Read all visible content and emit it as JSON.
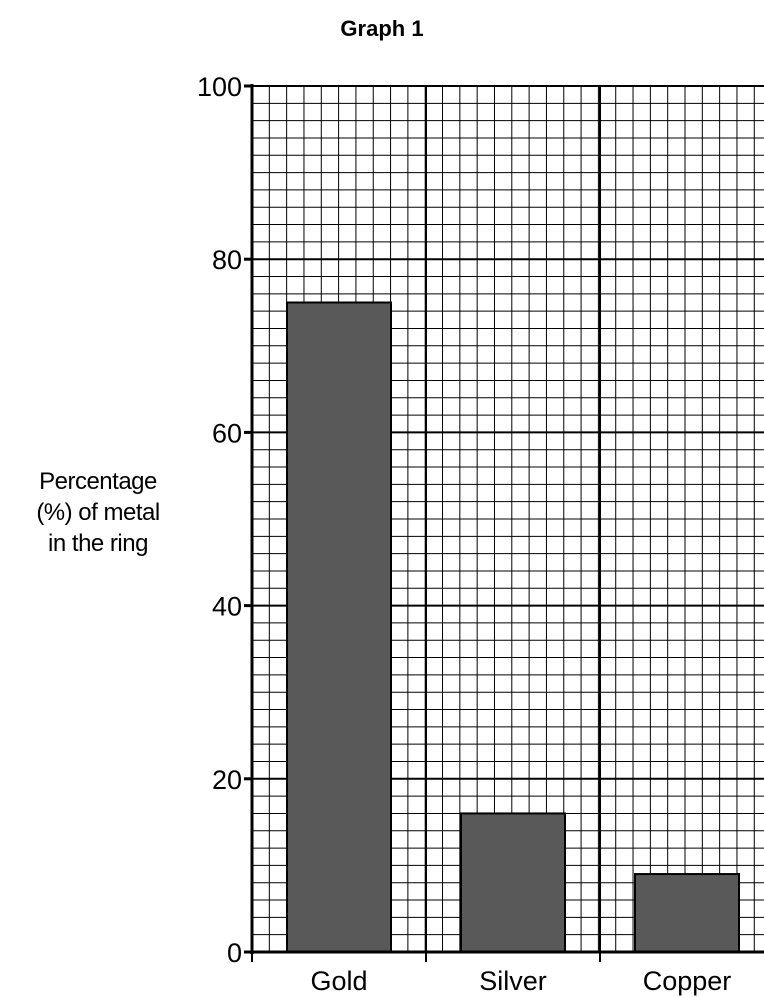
{
  "chart_data": {
    "type": "bar",
    "title": "Graph 1",
    "ylabel_lines": [
      "Percentage",
      "(%) of metal",
      "in the ring"
    ],
    "xlabel": "",
    "categories": [
      "Gold",
      "Silver",
      "Copper"
    ],
    "values": [
      75,
      16,
      9
    ],
    "ylim": [
      0,
      100
    ],
    "yticks": [
      0,
      20,
      40,
      60,
      80,
      100
    ],
    "grid": true,
    "minor_grid_step": 2,
    "legend": "none",
    "colors": {
      "bar_fill": "#595959",
      "bar_stroke": "#000000",
      "grid": "#000000",
      "background": "#ffffff"
    }
  }
}
